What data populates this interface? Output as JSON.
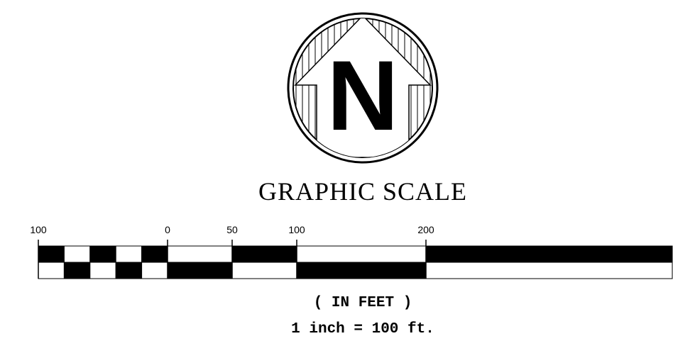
{
  "north_arrow": {
    "label": "N"
  },
  "title": "GRAPHIC SCALE",
  "scale": {
    "ticks": [
      {
        "value": -100,
        "label": "100"
      },
      0,
      50,
      100,
      200
    ]
  },
  "units": "( IN FEET )",
  "ratio": "1 inch = 100 ft."
}
